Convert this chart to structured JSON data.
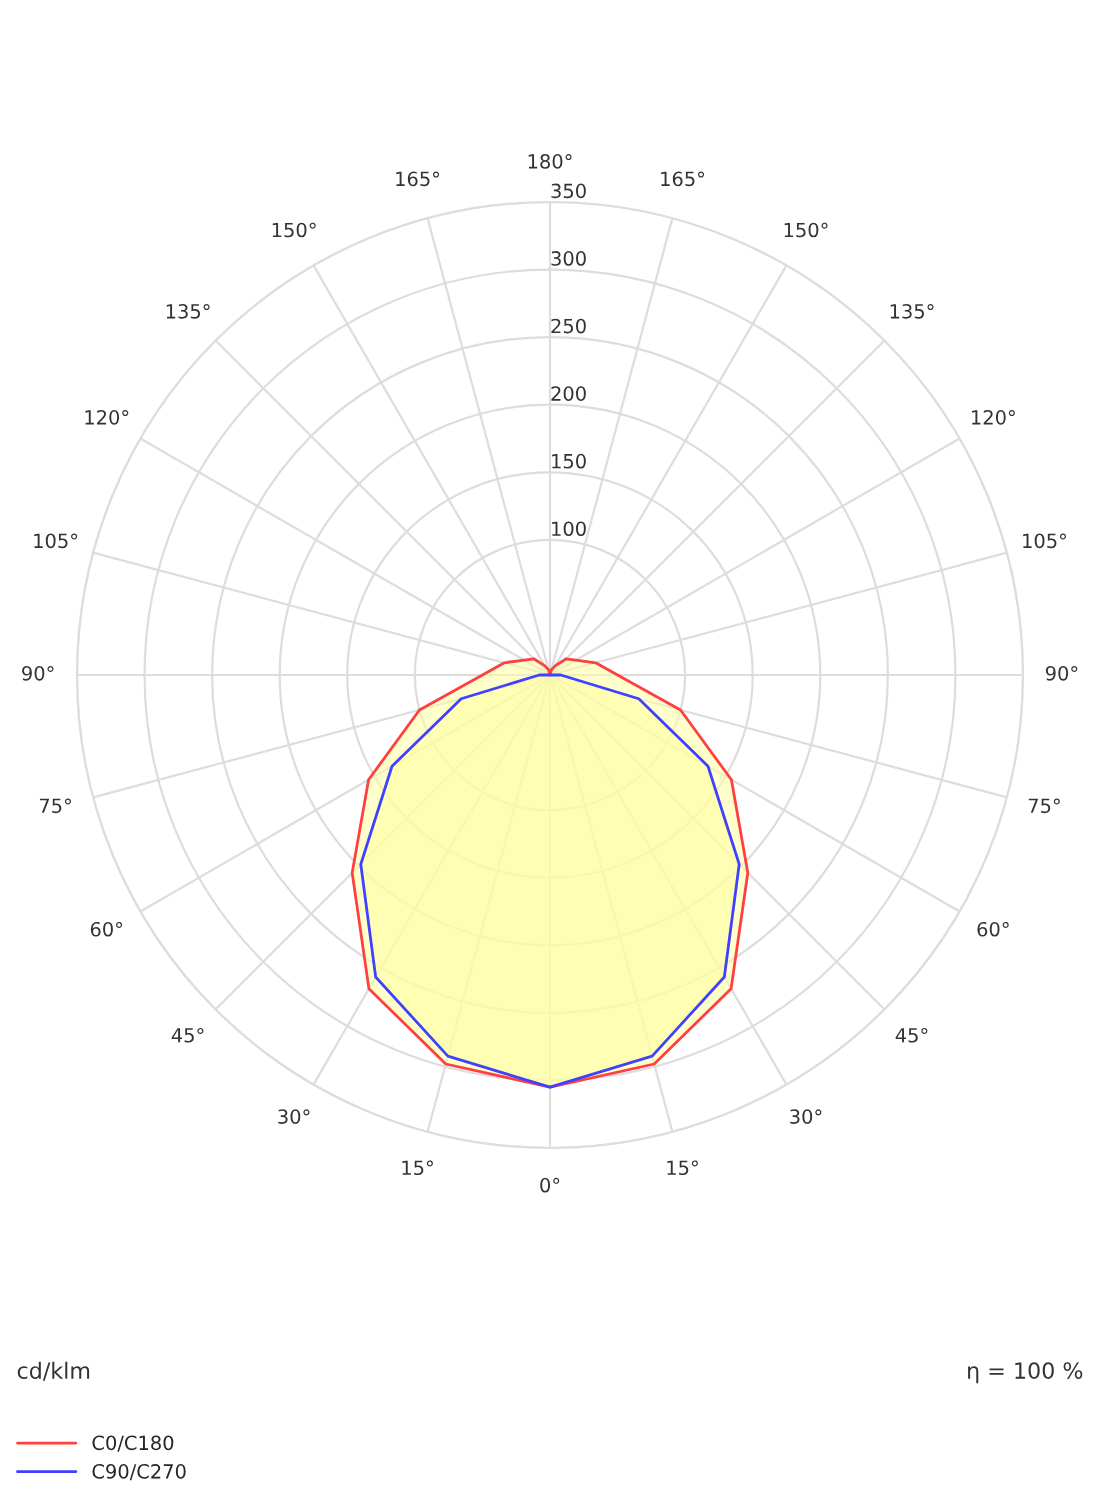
{
  "chart_data": {
    "type": "radar",
    "categories": [
      "180°",
      "165°",
      "150°",
      "135°",
      "120°",
      "105°",
      "90°",
      "75°",
      "60°",
      "45°",
      "30°",
      "15°",
      "0°",
      "15°",
      "30°",
      "45°",
      "60°",
      "75°",
      "90°",
      "105°",
      "120°",
      "135°",
      "150°",
      "165°"
    ],
    "series": [
      {
        "name": "C0/C180",
        "color": "#ff4040",
        "values": [
          0,
          4,
          8,
          17,
          22,
          35,
          50,
          100,
          155,
          207,
          268,
          298,
          305,
          298,
          268,
          207,
          155,
          100,
          50,
          35,
          22,
          17,
          8,
          4
        ]
      },
      {
        "name": "C90/C270",
        "color": "#4040ff",
        "values": [
          0,
          0,
          0,
          0,
          0,
          0,
          8,
          68,
          135,
          198,
          258,
          292,
          305,
          292,
          258,
          198,
          135,
          68,
          8,
          0,
          0,
          0,
          0,
          0
        ]
      }
    ],
    "ylim": [
      0,
      350
    ],
    "yticks": [
      100,
      150,
      200,
      250,
      300,
      350
    ],
    "grid": true,
    "legend": "bottom left",
    "annotations": [
      "cd/klm",
      "η = 100 %"
    ]
  }
}
